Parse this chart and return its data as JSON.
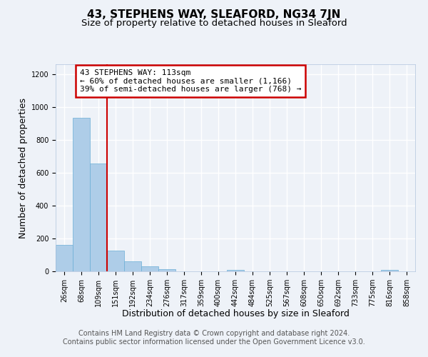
{
  "title": "43, STEPHENS WAY, SLEAFORD, NG34 7JN",
  "subtitle": "Size of property relative to detached houses in Sleaford",
  "xlabel": "Distribution of detached houses by size in Sleaford",
  "ylabel": "Number of detached properties",
  "bar_color": "#aecde8",
  "bar_edge_color": "#6aaed6",
  "bin_labels": [
    "26sqm",
    "68sqm",
    "109sqm",
    "151sqm",
    "192sqm",
    "234sqm",
    "276sqm",
    "317sqm",
    "359sqm",
    "400sqm",
    "442sqm",
    "484sqm",
    "525sqm",
    "567sqm",
    "608sqm",
    "650sqm",
    "692sqm",
    "733sqm",
    "775sqm",
    "816sqm",
    "858sqm"
  ],
  "bar_values": [
    160,
    935,
    655,
    125,
    60,
    30,
    15,
    0,
    0,
    0,
    10,
    0,
    0,
    0,
    0,
    0,
    0,
    0,
    0,
    10,
    0
  ],
  "ylim": [
    0,
    1260
  ],
  "yticks": [
    0,
    200,
    400,
    600,
    800,
    1000,
    1200
  ],
  "vline_color": "#cc0000",
  "vline_x_idx": 2.5,
  "annotation_text": "43 STEPHENS WAY: 113sqm\n← 60% of detached houses are smaller (1,166)\n39% of semi-detached houses are larger (768) →",
  "annotation_box_color": "#ffffff",
  "annotation_box_edge_color": "#cc0000",
  "footer_line1": "Contains HM Land Registry data © Crown copyright and database right 2024.",
  "footer_line2": "Contains public sector information licensed under the Open Government Licence v3.0.",
  "background_color": "#eef2f8",
  "grid_color": "#ffffff",
  "title_fontsize": 11,
  "subtitle_fontsize": 9.5,
  "axis_label_fontsize": 9,
  "tick_fontsize": 7,
  "footer_fontsize": 7,
  "annotation_fontsize": 8
}
